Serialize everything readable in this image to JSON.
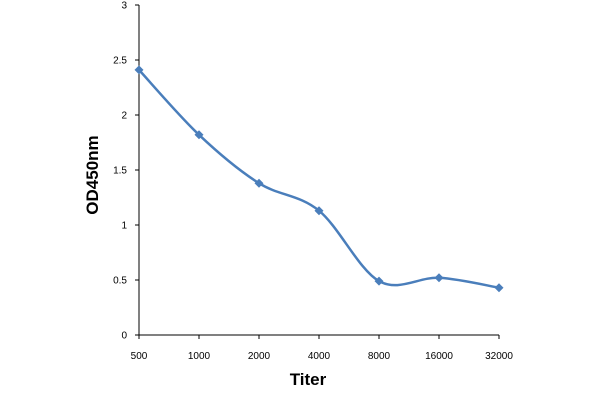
{
  "chart_data": {
    "type": "line",
    "title": "",
    "xlabel": "Titer",
    "ylabel": "OD450nm",
    "categories": [
      "500",
      "1000",
      "2000",
      "4000",
      "8000",
      "16000",
      "32000"
    ],
    "series": [
      {
        "values": [
          2.41,
          1.82,
          1.38,
          1.13,
          0.49,
          0.52,
          0.43
        ]
      }
    ],
    "ylim": [
      0,
      3
    ],
    "yticks": [
      "0",
      "0.5",
      "1",
      "1.5",
      "2",
      "2.5",
      "3"
    ],
    "grid": false,
    "legend": "none",
    "line_color": "#4a7ebb",
    "marker": "diamond",
    "smooth": true
  }
}
